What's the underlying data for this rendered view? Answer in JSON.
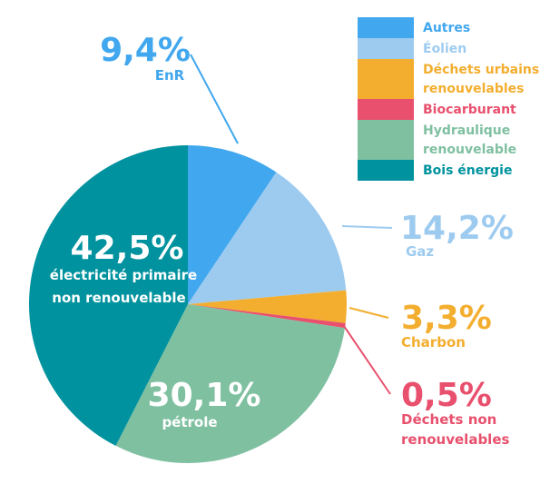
{
  "chart_data": {
    "type": "pie",
    "slices": [
      {
        "key": "enr",
        "value": 9.4,
        "pct": "9,4%",
        "label": "EnR",
        "color": "#41a7ee"
      },
      {
        "key": "gaz",
        "value": 14.2,
        "pct": "14,2%",
        "label": "Gaz",
        "color": "#9dcbf0"
      },
      {
        "key": "charbon",
        "value": 3.3,
        "pct": "3,3%",
        "label": "Charbon",
        "color": "#f3ae2f"
      },
      {
        "key": "dechets",
        "value": 0.5,
        "pct": "0,5%",
        "label_lines": [
          "Déchets non",
          "renouvelables"
        ],
        "color": "#e8506d"
      },
      {
        "key": "petrole",
        "value": 30.1,
        "pct": "30,1%",
        "label": "pétrole",
        "color": "#7fc0a1"
      },
      {
        "key": "elec",
        "value": 42.5,
        "pct": "42,5%",
        "label_lines": [
          "électricité primaire",
          "non renouvelable"
        ],
        "color": "#00929e"
      }
    ]
  },
  "legend": {
    "items": [
      {
        "lines": [
          "Autres"
        ],
        "color": "#41a7ee"
      },
      {
        "lines": [
          "Éolien"
        ],
        "color": "#9dcbf0"
      },
      {
        "lines": [
          "Déchets urbains",
          "renouvelables"
        ],
        "color": "#f3ae2f"
      },
      {
        "lines": [
          "Biocarburant"
        ],
        "color": "#e8506d"
      },
      {
        "lines": [
          "Hydraulique",
          "renouvelable"
        ],
        "color": "#7fc0a1"
      },
      {
        "lines": [
          "Bois énergie"
        ],
        "color": "#00929e"
      }
    ]
  }
}
